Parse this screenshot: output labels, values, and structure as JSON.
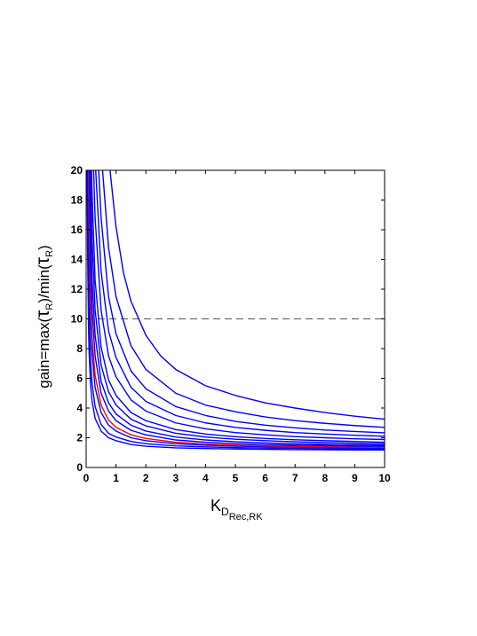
{
  "chart_data": {
    "type": "line",
    "title": "",
    "xlabel": {
      "main": "K",
      "sub": "D",
      "subsub": "Rec,RK"
    },
    "ylabel": {
      "prefix": "gain=max(",
      "tau1": "τ",
      "sub1": "R",
      "middle": ")/min(",
      "tau2": "τ",
      "sub2": "R",
      "suffix": ")"
    },
    "xlim": [
      0,
      10
    ],
    "ylim": [
      0,
      20
    ],
    "xticks": [
      "0",
      "1",
      "2",
      "3",
      "4",
      "5",
      "6",
      "7",
      "8",
      "9",
      "10"
    ],
    "yticks": [
      "0",
      "2",
      "4",
      "6",
      "8",
      "10",
      "12",
      "14",
      "16",
      "18",
      "20"
    ],
    "grid": false,
    "reference_line": {
      "y": 10,
      "style": "dashed",
      "color": "#555555"
    },
    "series": [
      {
        "color": "#0000ff",
        "x": [
          0.03,
          0.05,
          0.08,
          0.1,
          0.15,
          0.2,
          0.3,
          0.5,
          0.75,
          1,
          1.5,
          2,
          3,
          4,
          5,
          6,
          7,
          8,
          9,
          10
        ],
        "y": [
          20,
          14.3,
          9.4,
          7.7,
          5.5,
          4.45,
          3.3,
          2.45,
          2.0,
          1.8,
          1.55,
          1.43,
          1.32,
          1.27,
          1.24,
          1.22,
          1.2,
          1.19,
          1.18,
          1.18
        ]
      },
      {
        "color": "#0000ff",
        "x": [
          0.05,
          0.08,
          0.1,
          0.15,
          0.2,
          0.3,
          0.5,
          0.75,
          1,
          1.5,
          2,
          3,
          4,
          5,
          6,
          7,
          8,
          9,
          10
        ],
        "y": [
          20,
          12.6,
          10.2,
          7.1,
          5.6,
          4.1,
          2.9,
          2.3,
          2.05,
          1.75,
          1.6,
          1.45,
          1.38,
          1.33,
          1.3,
          1.28,
          1.26,
          1.25,
          1.24
        ]
      },
      {
        "color": "#0000ff",
        "x": [
          0.07,
          0.1,
          0.15,
          0.2,
          0.3,
          0.5,
          0.75,
          1,
          1.5,
          2,
          3,
          4,
          5,
          6,
          7,
          8,
          9,
          10
        ],
        "y": [
          20,
          14.2,
          9.8,
          7.6,
          5.4,
          3.7,
          2.85,
          2.45,
          2.0,
          1.8,
          1.6,
          1.5,
          1.43,
          1.39,
          1.36,
          1.33,
          1.31,
          1.3
        ]
      },
      {
        "color": "#ff0000",
        "x": [
          0.08,
          0.1,
          0.15,
          0.2,
          0.3,
          0.5,
          0.75,
          1,
          1.5,
          2,
          3,
          4,
          5,
          6,
          7,
          8,
          9,
          10
        ],
        "y": [
          20,
          16.2,
          11.2,
          8.7,
          6.2,
          4.2,
          3.2,
          2.7,
          2.2,
          1.95,
          1.7,
          1.58,
          1.5,
          1.45,
          1.42,
          1.39,
          1.37,
          1.35
        ]
      },
      {
        "color": "#0000ff",
        "x": [
          0.1,
          0.15,
          0.2,
          0.3,
          0.5,
          0.75,
          1,
          1.5,
          2,
          3,
          4,
          5,
          6,
          7,
          8,
          9,
          10
        ],
        "y": [
          20,
          13.6,
          10.6,
          7.5,
          5.0,
          3.8,
          3.15,
          2.5,
          2.2,
          1.85,
          1.7,
          1.6,
          1.54,
          1.5,
          1.47,
          1.44,
          1.42
        ]
      },
      {
        "color": "#0000ff",
        "x": [
          0.12,
          0.15,
          0.2,
          0.3,
          0.5,
          0.75,
          1,
          1.5,
          2,
          3,
          4,
          5,
          6,
          7,
          8,
          9,
          10
        ],
        "y": [
          20,
          16.3,
          12.6,
          8.9,
          5.8,
          4.35,
          3.6,
          2.85,
          2.45,
          2.05,
          1.85,
          1.73,
          1.65,
          1.6,
          1.56,
          1.53,
          1.5
        ]
      },
      {
        "color": "#0000ff",
        "x": [
          0.15,
          0.2,
          0.3,
          0.5,
          0.75,
          1,
          1.5,
          2,
          3,
          4,
          5,
          6,
          7,
          8,
          9,
          10
        ],
        "y": [
          20,
          15.3,
          10.6,
          6.9,
          5.1,
          4.2,
          3.25,
          2.8,
          2.3,
          2.05,
          1.9,
          1.8,
          1.73,
          1.68,
          1.64,
          1.6
        ]
      },
      {
        "color": "#0000ff",
        "x": [
          0.18,
          0.2,
          0.3,
          0.5,
          0.75,
          1,
          1.5,
          2,
          3,
          4,
          5,
          6,
          7,
          8,
          9,
          10
        ],
        "y": [
          20,
          18.4,
          12.6,
          8.1,
          5.9,
          4.85,
          3.7,
          3.15,
          2.55,
          2.25,
          2.07,
          1.95,
          1.86,
          1.8,
          1.75,
          1.7
        ]
      },
      {
        "color": "#0000ff",
        "x": [
          0.25,
          0.3,
          0.5,
          0.75,
          1,
          1.5,
          2,
          3,
          4,
          5,
          6,
          7,
          8,
          9,
          10
        ],
        "y": [
          20,
          16.8,
          10.6,
          7.5,
          6.1,
          4.55,
          3.8,
          3.0,
          2.6,
          2.35,
          2.2,
          2.08,
          2.0,
          1.93,
          1.88
        ]
      },
      {
        "color": "#0000ff",
        "x": [
          0.32,
          0.5,
          0.75,
          1,
          1.5,
          2,
          3,
          4,
          5,
          6,
          7,
          8,
          9,
          10
        ],
        "y": [
          20,
          13.2,
          9.2,
          7.4,
          5.4,
          4.45,
          3.5,
          3.0,
          2.7,
          2.5,
          2.35,
          2.25,
          2.17,
          2.1
        ]
      },
      {
        "color": "#0000ff",
        "x": [
          0.42,
          0.5,
          0.75,
          1,
          1.5,
          2,
          3,
          4,
          5,
          6,
          7,
          8,
          9,
          10
        ],
        "y": [
          20,
          16.8,
          11.5,
          9.0,
          6.5,
          5.3,
          4.1,
          3.5,
          3.1,
          2.85,
          2.67,
          2.52,
          2.42,
          2.33
        ]
      },
      {
        "color": "#0000ff",
        "x": [
          0.55,
          0.75,
          1,
          1.5,
          2,
          3,
          4,
          5,
          6,
          7,
          8,
          9,
          10
        ],
        "y": [
          20,
          14.8,
          11.5,
          8.2,
          6.6,
          5.0,
          4.2,
          3.75,
          3.4,
          3.15,
          2.97,
          2.82,
          2.7
        ]
      },
      {
        "color": "#0000ff",
        "x": [
          0.8,
          1,
          1.25,
          1.5,
          2,
          2.5,
          3,
          4,
          5,
          6,
          7,
          8,
          9,
          10
        ],
        "y": [
          20,
          16.2,
          13.1,
          11.2,
          8.9,
          7.5,
          6.6,
          5.5,
          4.85,
          4.35,
          4.0,
          3.7,
          3.45,
          3.25
        ]
      }
    ]
  }
}
